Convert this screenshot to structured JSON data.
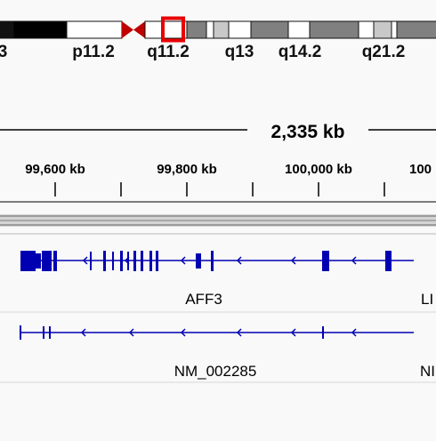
{
  "ideogram": {
    "band_labels": [
      "3",
      "p11.2",
      "q11.2",
      "q13",
      "q14.2",
      "q21.2"
    ]
  },
  "ruler": {
    "span_label": "2,335 kb",
    "tick_labels": [
      "99,600 kb",
      "99,800 kb",
      "100,000 kb",
      "100"
    ]
  },
  "tracks": {
    "gene_track": {
      "label": "AFF3",
      "edge_label": "LI",
      "color": "#0000b2"
    },
    "transcript_track": {
      "label": "NM_002285",
      "edge_label": "NI",
      "color": "#0000b2"
    }
  },
  "colors": {
    "region_box": "#e80000",
    "centromere": "#c00000",
    "background": "#f9f9f9"
  }
}
